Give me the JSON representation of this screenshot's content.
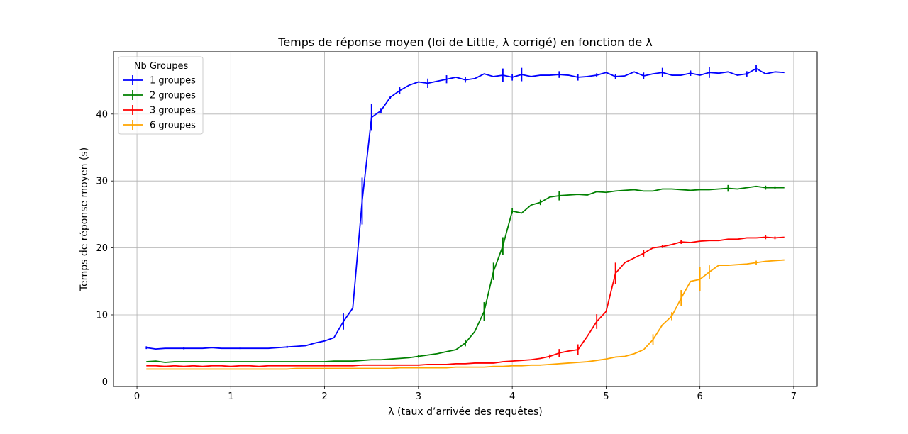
{
  "chart_data": {
    "type": "line",
    "title": "Temps de réponse moyen (loi de Little, λ corrigé) en fonction de λ",
    "xlabel": "λ (taux d’arrivée des requêtes)",
    "ylabel": "Temps de réponse moyen (s)",
    "xlim": [
      -0.25,
      7.25
    ],
    "ylim": [
      -0.7,
      49.3
    ],
    "xticks": [
      0,
      1,
      2,
      3,
      4,
      5,
      6,
      7
    ],
    "xtick_labels": [
      "0",
      "1",
      "2",
      "3",
      "4",
      "5",
      "6",
      "7"
    ],
    "yticks": [
      0,
      10,
      20,
      30,
      40
    ],
    "ytick_labels": [
      "0",
      "10",
      "20",
      "30",
      "40"
    ],
    "grid": true,
    "legend": {
      "title": "Nb Groupes",
      "placement": "top-left"
    },
    "error_bars": true,
    "series": [
      {
        "name": "1 groupes",
        "color": "#0000ff",
        "x": [
          0.1,
          0.2,
          0.3,
          0.4,
          0.5,
          0.6,
          0.7,
          0.8,
          0.9,
          1.0,
          1.1,
          1.2,
          1.3,
          1.4,
          1.5,
          1.6,
          1.7,
          1.8,
          1.9,
          2.0,
          2.1,
          2.2,
          2.3,
          2.4,
          2.5,
          2.6,
          2.7,
          2.8,
          2.9,
          3.0,
          3.1,
          3.2,
          3.3,
          3.4,
          3.5,
          3.6,
          3.7,
          3.8,
          3.9,
          4.0,
          4.1,
          4.2,
          4.3,
          4.4,
          4.5,
          4.6,
          4.7,
          4.8,
          4.9,
          5.0,
          5.1,
          5.2,
          5.3,
          5.4,
          5.5,
          5.6,
          5.7,
          5.8,
          5.9,
          6.0,
          6.1,
          6.2,
          6.3,
          6.4,
          6.5,
          6.6,
          6.7,
          6.8,
          6.9
        ],
        "y": [
          5.1,
          4.9,
          5.0,
          5.0,
          5.0,
          5.0,
          5.0,
          5.1,
          5.0,
          5.0,
          5.0,
          5.0,
          5.0,
          5.0,
          5.1,
          5.2,
          5.3,
          5.4,
          5.8,
          6.1,
          6.6,
          9.0,
          11.0,
          27.0,
          39.5,
          40.5,
          42.5,
          43.5,
          44.3,
          44.8,
          44.6,
          44.9,
          45.2,
          45.5,
          45.1,
          45.3,
          46.0,
          45.6,
          45.8,
          45.5,
          45.9,
          45.6,
          45.8,
          45.8,
          45.9,
          45.8,
          45.5,
          45.6,
          45.8,
          46.2,
          45.6,
          45.7,
          46.3,
          45.7,
          46.0,
          46.2,
          45.8,
          45.8,
          46.1,
          45.8,
          46.2,
          46.1,
          46.3,
          45.8,
          46.0,
          46.8,
          46.0,
          46.3,
          46.2
        ],
        "err": [
          0.2,
          0,
          0,
          0,
          0.15,
          0,
          0,
          0,
          0,
          0,
          0.1,
          0,
          0,
          0,
          0,
          0.15,
          0,
          0,
          0,
          0,
          0,
          1.2,
          0,
          3.5,
          2.0,
          0.4,
          0.2,
          0.5,
          0,
          0,
          0.7,
          0,
          0.6,
          0,
          0.4,
          0,
          0,
          0,
          1.0,
          0.5,
          1.0,
          0,
          0,
          0,
          0.5,
          0,
          0.5,
          0,
          0.3,
          0,
          0.4,
          0,
          0,
          0.5,
          0,
          0.7,
          0,
          0,
          0.4,
          0,
          0.8,
          0,
          0,
          0,
          0.4,
          0.5,
          0,
          0,
          0
        ]
      },
      {
        "name": "2 groupes",
        "color": "#008000",
        "x": [
          0.1,
          0.2,
          0.3,
          0.4,
          0.5,
          0.6,
          0.7,
          0.8,
          0.9,
          1.0,
          1.1,
          1.2,
          1.3,
          1.4,
          1.5,
          1.6,
          1.7,
          1.8,
          1.9,
          2.0,
          2.1,
          2.2,
          2.3,
          2.4,
          2.5,
          2.6,
          2.7,
          2.8,
          2.9,
          3.0,
          3.1,
          3.2,
          3.3,
          3.4,
          3.5,
          3.6,
          3.7,
          3.8,
          3.9,
          4.0,
          4.1,
          4.2,
          4.3,
          4.4,
          4.5,
          4.6,
          4.7,
          4.8,
          4.9,
          5.0,
          5.1,
          5.2,
          5.3,
          5.4,
          5.5,
          5.6,
          5.7,
          5.8,
          5.9,
          6.0,
          6.1,
          6.2,
          6.3,
          6.4,
          6.5,
          6.6,
          6.7,
          6.8,
          6.9
        ],
        "y": [
          3.0,
          3.1,
          2.9,
          3.0,
          3.0,
          3.0,
          3.0,
          3.0,
          3.0,
          3.0,
          3.0,
          3.0,
          3.0,
          3.0,
          3.0,
          3.0,
          3.0,
          3.0,
          3.0,
          3.0,
          3.1,
          3.1,
          3.1,
          3.2,
          3.3,
          3.3,
          3.4,
          3.5,
          3.6,
          3.8,
          4.0,
          4.2,
          4.5,
          4.8,
          5.8,
          7.5,
          10.5,
          16.5,
          20.3,
          25.5,
          25.2,
          26.4,
          26.8,
          27.6,
          27.8,
          27.9,
          28.0,
          27.9,
          28.4,
          28.3,
          28.5,
          28.6,
          28.7,
          28.5,
          28.5,
          28.8,
          28.8,
          28.7,
          28.6,
          28.7,
          28.7,
          28.8,
          28.9,
          28.8,
          29.0,
          29.2,
          29.0,
          29.0,
          29.0
        ],
        "err": [
          0,
          0,
          0,
          0,
          0,
          0,
          0,
          0,
          0,
          0,
          0,
          0,
          0,
          0,
          0,
          0,
          0,
          0,
          0,
          0,
          0,
          0,
          0,
          0,
          0,
          0,
          0,
          0,
          0,
          0.2,
          0,
          0,
          0,
          0,
          0.5,
          0,
          1.4,
          1.3,
          1.3,
          0.4,
          0,
          0,
          0.4,
          0,
          0.7,
          0,
          0,
          0,
          0,
          0,
          0,
          0,
          0,
          0,
          0,
          0,
          0,
          0,
          0,
          0,
          0,
          0,
          0.5,
          0,
          0,
          0,
          0.3,
          0.2,
          0
        ]
      },
      {
        "name": "3 groupes",
        "color": "#ff0000",
        "x": [
          0.1,
          0.2,
          0.3,
          0.4,
          0.5,
          0.6,
          0.7,
          0.8,
          0.9,
          1.0,
          1.1,
          1.2,
          1.3,
          1.4,
          1.5,
          1.6,
          1.7,
          1.8,
          1.9,
          2.0,
          2.1,
          2.2,
          2.3,
          2.4,
          2.5,
          2.6,
          2.7,
          2.8,
          2.9,
          3.0,
          3.1,
          3.2,
          3.3,
          3.4,
          3.5,
          3.6,
          3.7,
          3.8,
          3.9,
          4.0,
          4.1,
          4.2,
          4.3,
          4.4,
          4.5,
          4.6,
          4.7,
          4.8,
          4.9,
          5.0,
          5.1,
          5.2,
          5.3,
          5.4,
          5.5,
          5.6,
          5.7,
          5.8,
          5.9,
          6.0,
          6.1,
          6.2,
          6.3,
          6.4,
          6.5,
          6.6,
          6.7,
          6.8,
          6.9
        ],
        "y": [
          2.4,
          2.4,
          2.3,
          2.4,
          2.3,
          2.4,
          2.3,
          2.4,
          2.4,
          2.3,
          2.4,
          2.4,
          2.3,
          2.4,
          2.4,
          2.4,
          2.4,
          2.4,
          2.4,
          2.4,
          2.4,
          2.4,
          2.4,
          2.5,
          2.5,
          2.5,
          2.5,
          2.5,
          2.5,
          2.5,
          2.6,
          2.6,
          2.6,
          2.7,
          2.7,
          2.8,
          2.8,
          2.8,
          3.0,
          3.1,
          3.2,
          3.3,
          3.5,
          3.8,
          4.3,
          4.6,
          4.8,
          6.8,
          9.0,
          10.5,
          16.2,
          17.8,
          18.5,
          19.2,
          20.0,
          20.2,
          20.5,
          20.9,
          20.8,
          21.0,
          21.1,
          21.1,
          21.3,
          21.3,
          21.5,
          21.5,
          21.6,
          21.5,
          21.6
        ],
        "err": [
          0,
          0,
          0.1,
          0,
          0,
          0,
          0,
          0,
          0,
          0,
          0,
          0,
          0,
          0,
          0,
          0,
          0,
          0,
          0,
          0,
          0,
          0,
          0,
          0,
          0,
          0,
          0,
          0,
          0,
          0,
          0,
          0,
          0,
          0,
          0,
          0,
          0,
          0,
          0,
          0,
          0,
          0,
          0,
          0.3,
          0.6,
          0,
          0.8,
          0,
          1.1,
          0,
          1.6,
          0,
          0,
          0.5,
          0,
          0.2,
          0,
          0.3,
          0,
          0,
          0,
          0,
          0,
          0,
          0,
          0,
          0.3,
          0.2,
          0
        ]
      },
      {
        "name": "6 groupes",
        "color": "#ffa500",
        "x": [
          0.1,
          0.2,
          0.3,
          0.4,
          0.5,
          0.6,
          0.7,
          0.8,
          0.9,
          1.0,
          1.1,
          1.2,
          1.3,
          1.4,
          1.5,
          1.6,
          1.7,
          1.8,
          1.9,
          2.0,
          2.1,
          2.2,
          2.3,
          2.4,
          2.5,
          2.6,
          2.7,
          2.8,
          2.9,
          3.0,
          3.1,
          3.2,
          3.3,
          3.4,
          3.5,
          3.6,
          3.7,
          3.8,
          3.9,
          4.0,
          4.1,
          4.2,
          4.3,
          4.4,
          4.5,
          4.6,
          4.7,
          4.8,
          4.9,
          5.0,
          5.1,
          5.2,
          5.3,
          5.4,
          5.5,
          5.6,
          5.7,
          5.8,
          5.9,
          6.0,
          6.1,
          6.2,
          6.3,
          6.4,
          6.5,
          6.6,
          6.7,
          6.8,
          6.9
        ],
        "y": [
          1.9,
          1.9,
          1.9,
          1.9,
          1.9,
          1.9,
          1.9,
          1.9,
          1.9,
          1.9,
          1.9,
          1.9,
          1.9,
          1.9,
          1.9,
          1.9,
          2.0,
          2.0,
          2.0,
          2.0,
          2.0,
          2.0,
          2.0,
          2.0,
          2.0,
          2.0,
          2.0,
          2.1,
          2.1,
          2.1,
          2.1,
          2.1,
          2.1,
          2.2,
          2.2,
          2.2,
          2.2,
          2.3,
          2.3,
          2.4,
          2.4,
          2.5,
          2.5,
          2.6,
          2.7,
          2.8,
          2.9,
          3.0,
          3.2,
          3.4,
          3.7,
          3.8,
          4.2,
          4.8,
          6.3,
          8.5,
          9.8,
          12.5,
          15.0,
          15.3,
          16.4,
          17.4,
          17.4,
          17.5,
          17.6,
          17.8,
          18.0,
          18.1,
          18.2
        ],
        "err": [
          0,
          0,
          0,
          0,
          0,
          0,
          0,
          0,
          0,
          0,
          0,
          0,
          0,
          0,
          0,
          0,
          0,
          0,
          0,
          0,
          0,
          0,
          0,
          0,
          0,
          0,
          0,
          0,
          0,
          0,
          0,
          0,
          0,
          0,
          0,
          0,
          0,
          0,
          0,
          0,
          0,
          0,
          0,
          0,
          0,
          0,
          0,
          0,
          0,
          0,
          0,
          0,
          0,
          0,
          0.8,
          0,
          0.6,
          1.2,
          0,
          1.8,
          1.0,
          0,
          0,
          0,
          0,
          0.3,
          0,
          0,
          0
        ]
      }
    ]
  }
}
